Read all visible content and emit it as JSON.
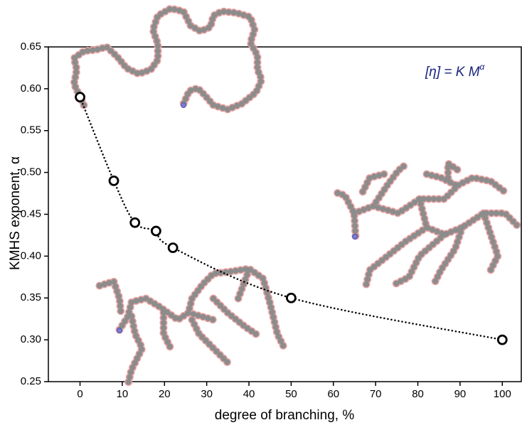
{
  "chart_data": {
    "type": "scatter",
    "xlabel": "degree of branching, %",
    "ylabel": "KMHS exponent, α",
    "annotation": {
      "text": "[η] = K M",
      "sup": "α"
    },
    "x": [
      0,
      8,
      13,
      18,
      22,
      50,
      100
    ],
    "values": [
      0.59,
      0.49,
      0.44,
      0.43,
      0.41,
      0.35,
      0.3
    ],
    "color": "#000000",
    "fit_line": "dotted",
    "xlim": [
      -7.5,
      104.5
    ],
    "ylim": [
      0.25,
      0.65
    ],
    "xticks": [
      0,
      10,
      20,
      30,
      40,
      50,
      60,
      70,
      80,
      90,
      100
    ],
    "yticks": [
      0.25,
      {
        "value": 0.3,
        "label": "0.30"
      },
      0.35,
      {
        "value": 0.4,
        "label": "0.40"
      },
      0.45,
      {
        "value": 0.5,
        "label": "0.50"
      },
      0.55,
      {
        "value": 0.6,
        "label": "0.60"
      },
      0.65
    ],
    "grid": false
  }
}
